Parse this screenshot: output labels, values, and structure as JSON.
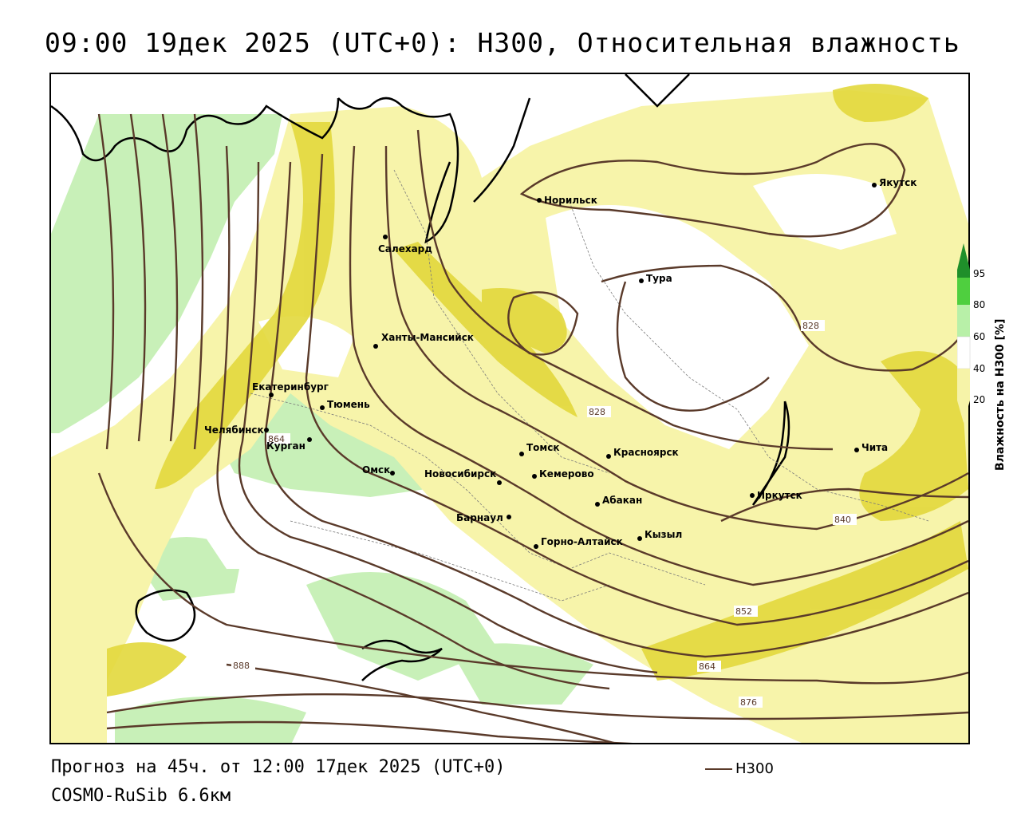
{
  "title": "09:00 19дек 2025 (UTC+0): H300, Относительная влажность",
  "footer": {
    "forecast": "Прогноз на 45ч. от 12:00 17дек 2025 (UTC+0)",
    "model": "COSMO-RuSib 6.6км"
  },
  "legend": {
    "label": "H300",
    "color": "#5a3a2a"
  },
  "colorbar": {
    "title": "Влажность на H300 [%]",
    "ticks": [
      "95",
      "80",
      "60",
      "40",
      "20"
    ],
    "colors": {
      "c95": "#1f8f2a",
      "c80": "#4fcf3f",
      "c60": "#b8f0a8",
      "c40": "#ffffff",
      "c20": "#f6f3a8",
      "c_dark": "#e0d63a"
    }
  },
  "cities": [
    {
      "name": "Норильск"
    },
    {
      "name": "Якутск"
    },
    {
      "name": "Салехард"
    },
    {
      "name": "Тура"
    },
    {
      "name": "Ханты-Мансийск"
    },
    {
      "name": "Екатеринбург"
    },
    {
      "name": "Тюмень"
    },
    {
      "name": "Челябинск"
    },
    {
      "name": "Курган"
    },
    {
      "name": "Омск"
    },
    {
      "name": "Новосибирск"
    },
    {
      "name": "Томск"
    },
    {
      "name": "Кемерово"
    },
    {
      "name": "Красноярск"
    },
    {
      "name": "Абакан"
    },
    {
      "name": "Барнаул"
    },
    {
      "name": "Горно-Алтайск"
    },
    {
      "name": "Кызыл"
    },
    {
      "name": "Иркутск"
    },
    {
      "name": "Чита"
    }
  ],
  "contour_labels": [
    "828",
    "828",
    "840",
    "852",
    "864",
    "864",
    "876",
    "888"
  ]
}
